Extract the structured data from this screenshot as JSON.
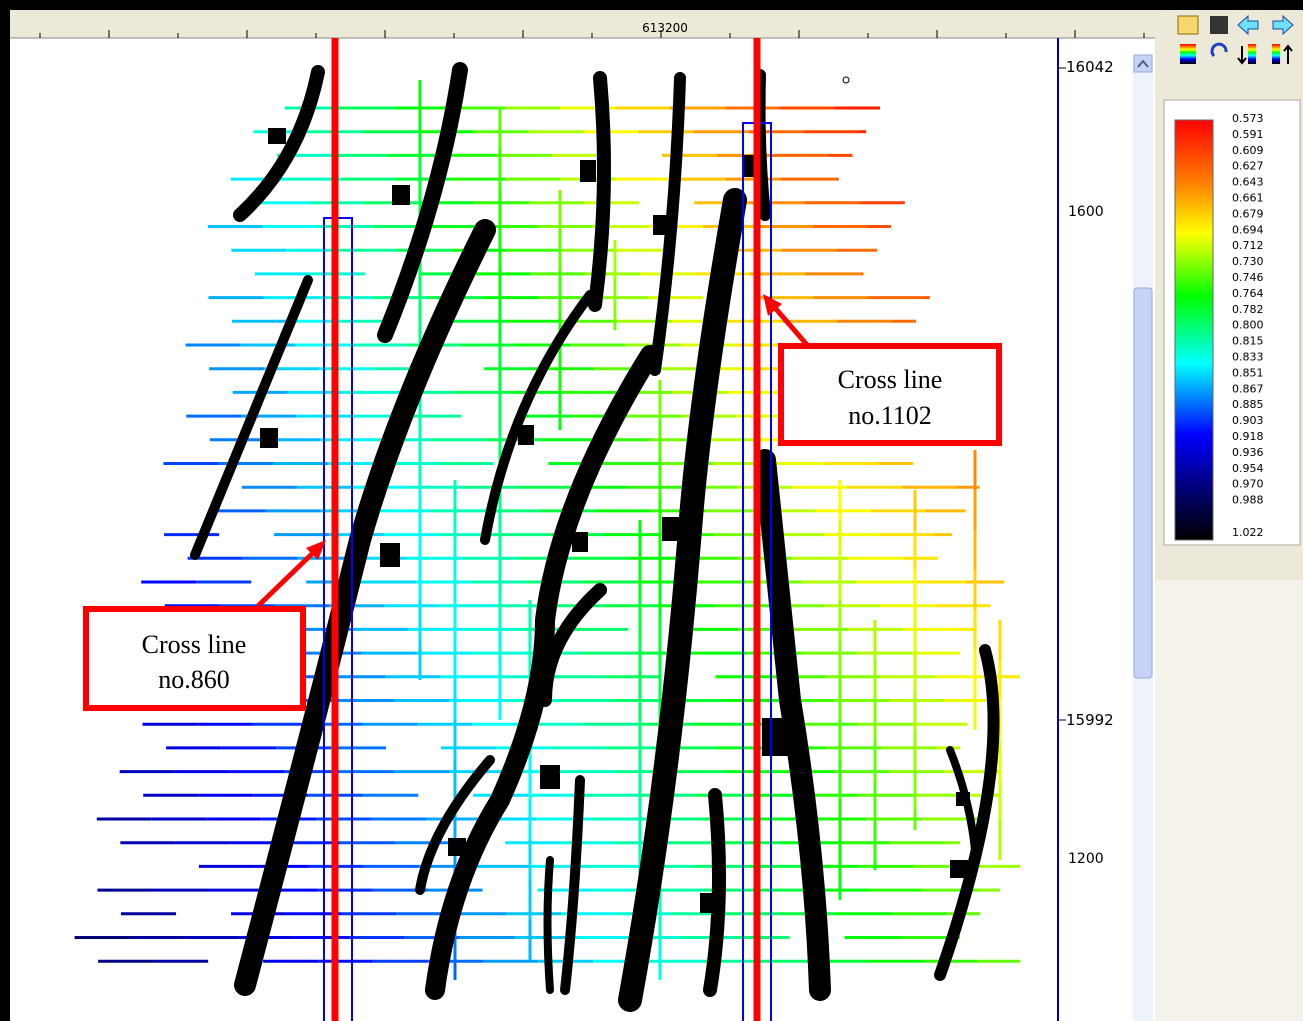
{
  "ruler": {
    "x_label": "613200"
  },
  "axis": {
    "labels": [
      "16042",
      "1600",
      "15992",
      "1200"
    ]
  },
  "callouts": [
    {
      "lines": [
        "Cross line",
        "no.860"
      ]
    },
    {
      "lines": [
        "Cross line",
        "no.1102"
      ]
    }
  ],
  "colorbar": {
    "labels": [
      "0.573",
      "0.591",
      "0.609",
      "0.627",
      "0.643",
      "0.661",
      "0.679",
      "0.694",
      "0.712",
      "0.730",
      "0.746",
      "0.764",
      "0.782",
      "0.800",
      "0.815",
      "0.833",
      "0.851",
      "0.867",
      "0.885",
      "0.903",
      "0.918",
      "0.936",
      "0.954",
      "0.970",
      "0.988",
      "1.022"
    ]
  }
}
